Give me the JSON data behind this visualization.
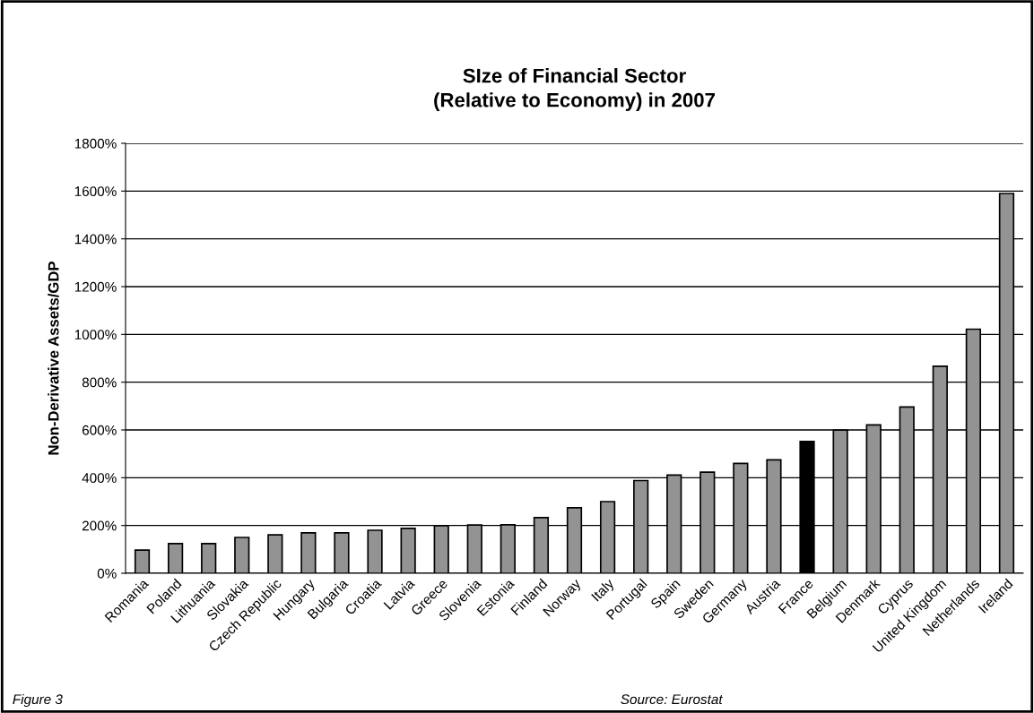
{
  "chart_data": {
    "type": "bar",
    "title": "SIze of Financial Sector\n(Relative to Economy) in 2007",
    "ylabel": "Non-Derivative Assets/GDP",
    "categories": [
      "Romania",
      "Poland",
      "Lithuania",
      "Slovakia",
      "Czech Republic",
      "Hungary",
      "Bulgaria",
      "Croatia",
      "Latvia",
      "Greece",
      "Slovenia",
      "Estonia",
      "Finland",
      "Norway",
      "Italy",
      "Portugal",
      "Spain",
      "Sweden",
      "Germany",
      "Austria",
      "France",
      "Belgium",
      "Denmark",
      "Cyprus",
      "United Kingdom",
      "Netherlands",
      "Ireland"
    ],
    "values": [
      97,
      124,
      124,
      150,
      161,
      169,
      169,
      180,
      188,
      199,
      202,
      203,
      233,
      274,
      300,
      388,
      411,
      423,
      460,
      475,
      552,
      599,
      621,
      696,
      867,
      1022,
      1590
    ],
    "colors": [
      "#939393",
      "#939393",
      "#939393",
      "#939393",
      "#939393",
      "#939393",
      "#939393",
      "#939393",
      "#939393",
      "#939393",
      "#939393",
      "#939393",
      "#939393",
      "#939393",
      "#939393",
      "#939393",
      "#939393",
      "#939393",
      "#939393",
      "#939393",
      "#000000",
      "#939393",
      "#939393",
      "#939393",
      "#939393",
      "#939393",
      "#939393"
    ],
    "ylim": [
      0,
      1800
    ],
    "yticks": [
      {
        "value": 0,
        "label": "0%"
      },
      {
        "value": 200,
        "label": "200%"
      },
      {
        "value": 400,
        "label": "400%"
      },
      {
        "value": 600,
        "label": "600%"
      },
      {
        "value": 800,
        "label": "800%"
      },
      {
        "value": 1000,
        "label": "1000%"
      },
      {
        "value": 1200,
        "label": "1200%"
      },
      {
        "value": 1400,
        "label": "1400%"
      },
      {
        "value": 1600,
        "label": "1600%"
      },
      {
        "value": 1800,
        "label": "1800%"
      }
    ],
    "grid": "y",
    "legend": false,
    "annotations": [
      "Figure 3",
      "Source: Eurostat"
    ]
  }
}
